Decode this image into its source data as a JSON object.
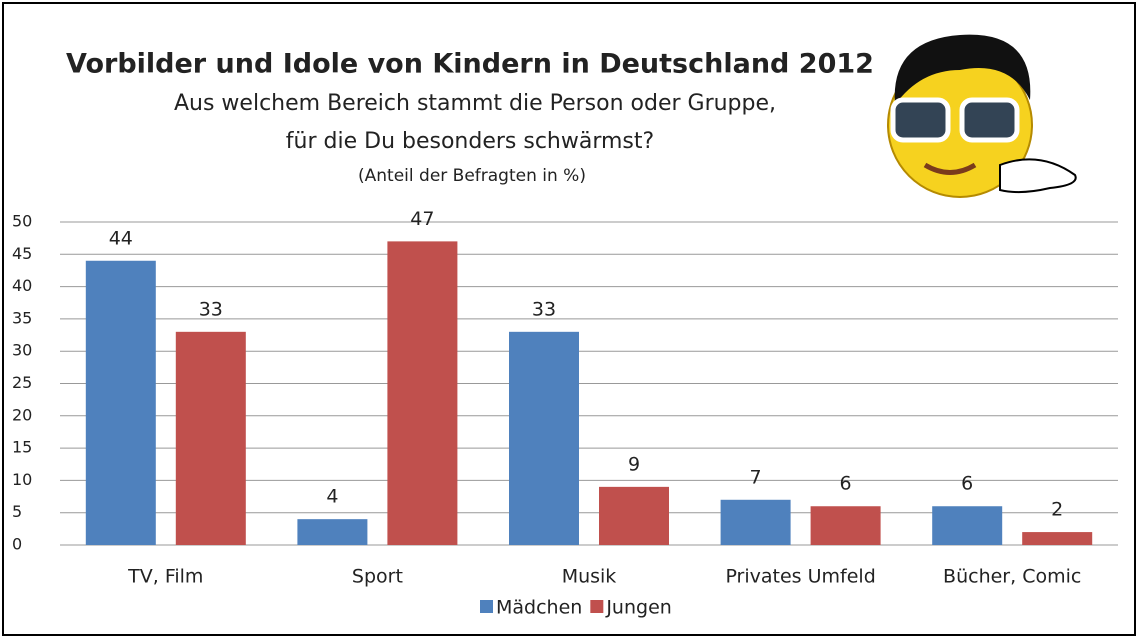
{
  "chart_data": {
    "type": "bar",
    "title": "Vorbilder und Idole von Kindern in Deutschland 2012",
    "subtitle": [
      "Aus welchem Bereich stammt die Person oder Gruppe,",
      "für die Du besonders schwärmst?"
    ],
    "note": "(Anteil der Befragten in %)",
    "categories": [
      "TV, Film",
      "Sport",
      "Musik",
      "Privates Umfeld",
      "Bücher, Comic"
    ],
    "series": [
      {
        "name": "Mädchen",
        "color": "#4f81bd",
        "values": [
          44,
          4,
          33,
          7,
          6
        ]
      },
      {
        "name": "Jungen",
        "color": "#c0504d",
        "values": [
          33,
          47,
          9,
          6,
          2
        ]
      }
    ],
    "ylim": [
      0,
      50
    ],
    "yticks": [
      0,
      5,
      10,
      15,
      20,
      25,
      30,
      35,
      40,
      45,
      50
    ],
    "grid": true
  }
}
